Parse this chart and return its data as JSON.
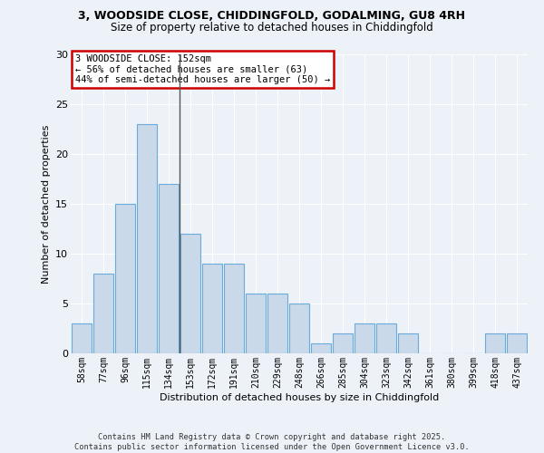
{
  "title_line1": "3, WOODSIDE CLOSE, CHIDDINGFOLD, GODALMING, GU8 4RH",
  "title_line2": "Size of property relative to detached houses in Chiddingfold",
  "xlabel": "Distribution of detached houses by size in Chiddingfold",
  "ylabel": "Number of detached properties",
  "categories": [
    "58sqm",
    "77sqm",
    "96sqm",
    "115sqm",
    "134sqm",
    "153sqm",
    "172sqm",
    "191sqm",
    "210sqm",
    "229sqm",
    "248sqm",
    "266sqm",
    "285sqm",
    "304sqm",
    "323sqm",
    "342sqm",
    "361sqm",
    "380sqm",
    "399sqm",
    "418sqm",
    "437sqm"
  ],
  "values": [
    3,
    8,
    15,
    23,
    17,
    12,
    9,
    9,
    6,
    6,
    5,
    1,
    2,
    3,
    3,
    2,
    0,
    0,
    0,
    2,
    2
  ],
  "bar_color": "#c9d9ea",
  "bar_edge_color": "#6aabda",
  "vline_x": 4.5,
  "vline_color": "#555555",
  "annotation_text": "3 WOODSIDE CLOSE: 152sqm\n← 56% of detached houses are smaller (63)\n44% of semi-detached houses are larger (50) →",
  "annotation_box_facecolor": "#ffffff",
  "annotation_box_edgecolor": "#cc0000",
  "ylim": [
    0,
    30
  ],
  "yticks": [
    0,
    5,
    10,
    15,
    20,
    25,
    30
  ],
  "bg_color": "#edf2f8",
  "grid_color": "#ffffff",
  "footer_line1": "Contains HM Land Registry data © Crown copyright and database right 2025.",
  "footer_line2": "Contains public sector information licensed under the Open Government Licence v3.0."
}
